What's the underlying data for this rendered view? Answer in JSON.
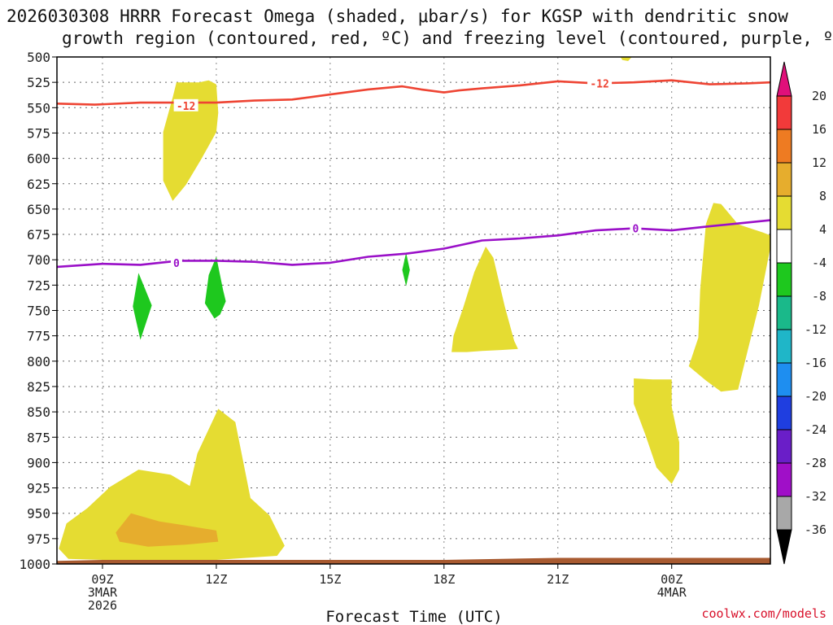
{
  "chart_data": {
    "type": "cross-section",
    "title_line1": "2026030308 HRRR Forecast Omega (shaded, μbar/s) for KGSP with dendritic snow",
    "title_line2": "growth region (contoured, red, ºC) and freezing level (contoured, purple, ºC)",
    "xlabel": "Forecast Time (UTC)",
    "credit": "coolwx.com/models",
    "x_range_hours": [
      7.8,
      26.6
    ],
    "y_range_hpa": [
      500,
      1000
    ],
    "y_ticks": [
      "500",
      "525",
      "550",
      "575",
      "600",
      "625",
      "650",
      "675",
      "700",
      "725",
      "750",
      "775",
      "800",
      "825",
      "850",
      "875",
      "900",
      "925",
      "950",
      "975",
      "1000"
    ],
    "x_ticks": [
      {
        "hour": 9,
        "lines": [
          "09Z",
          "3MAR",
          "2026"
        ]
      },
      {
        "hour": 12,
        "lines": [
          "12Z"
        ]
      },
      {
        "hour": 15,
        "lines": [
          "15Z"
        ]
      },
      {
        "hour": 18,
        "lines": [
          "18Z"
        ]
      },
      {
        "hour": 21,
        "lines": [
          "21Z"
        ]
      },
      {
        "hour": 24,
        "lines": [
          "00Z",
          "4MAR"
        ]
      }
    ],
    "colorbar": {
      "ticks": [
        "20",
        "16",
        "12",
        "8",
        "4",
        "-4",
        "-8",
        "-12",
        "-16",
        "-20",
        "-24",
        "-28",
        "-32",
        "-36"
      ],
      "bins": [
        {
          "label": "16 to 20",
          "color": "#f23a3a"
        },
        {
          "label": "12 to 16",
          "color": "#ee7b22"
        },
        {
          "label": "8 to 12",
          "color": "#e6ad2d"
        },
        {
          "label": "4 to 8",
          "color": "#e5dc32"
        },
        {
          "label": "-4 to 4",
          "color": "#ffffff"
        },
        {
          "label": "-8 to -4",
          "color": "#1ec81e"
        },
        {
          "label": "-12 to -8",
          "color": "#1ab98a"
        },
        {
          "label": "-16 to -12",
          "color": "#1fb6c8"
        },
        {
          "label": "-20 to -16",
          "color": "#1e8ef0"
        },
        {
          "label": "-24 to -20",
          "color": "#1f3ee0"
        },
        {
          "label": "-28 to -24",
          "color": "#6a1ec8"
        },
        {
          "label": "-32 to -28",
          "color": "#a00fc8"
        },
        {
          "label": "-36 to -32",
          "color": "#a8a8a8"
        }
      ],
      "top_arrow_color": "#e0107a",
      "bottom_arrow_color": "#000000"
    },
    "contours": [
      {
        "name": "dgz-minus12",
        "value": -12,
        "label": "-12",
        "color": "#ee4433",
        "points": [
          [
            7.8,
            546
          ],
          [
            8.8,
            547
          ],
          [
            10,
            545
          ],
          [
            12,
            545
          ],
          [
            13,
            543
          ],
          [
            14,
            542
          ],
          [
            15,
            537
          ],
          [
            16,
            532
          ],
          [
            16.9,
            529
          ],
          [
            17.4,
            532
          ],
          [
            18,
            535
          ],
          [
            18.4,
            533
          ],
          [
            19,
            531
          ],
          [
            20,
            528
          ],
          [
            21,
            524
          ],
          [
            22,
            526
          ],
          [
            23,
            525
          ],
          [
            24,
            523
          ],
          [
            25,
            527
          ],
          [
            26,
            526
          ],
          [
            26.6,
            525
          ]
        ],
        "label_positions": [
          [
            11.2,
            548
          ],
          [
            22.1,
            526
          ]
        ]
      },
      {
        "name": "freezing-level-0",
        "value": 0,
        "label": "0",
        "color": "#9a10c8",
        "points": [
          [
            7.8,
            707
          ],
          [
            9,
            704
          ],
          [
            10,
            705
          ],
          [
            11,
            701
          ],
          [
            12,
            701
          ],
          [
            13,
            702
          ],
          [
            14,
            705
          ],
          [
            15,
            703
          ],
          [
            16,
            697
          ],
          [
            17,
            694
          ],
          [
            18,
            689
          ],
          [
            19,
            681
          ],
          [
            20,
            679
          ],
          [
            21,
            676
          ],
          [
            22,
            671
          ],
          [
            23,
            669
          ],
          [
            24,
            671
          ],
          [
            25,
            667
          ],
          [
            26.6,
            661
          ]
        ],
        "label_positions": [
          [
            10.95,
            703
          ],
          [
            23.05,
            669
          ]
        ]
      }
    ],
    "shaded_regions": [
      {
        "name": "omega-pos-small-top",
        "value_bin": "4 to 8",
        "color": "#e5dc32",
        "points": [
          [
            22.65,
            500
          ],
          [
            22.95,
            500
          ],
          [
            22.85,
            504
          ],
          [
            22.7,
            503
          ]
        ]
      },
      {
        "name": "omega-pos-upper-12z",
        "value_bin": "4 to 8",
        "color": "#e5dc32",
        "points": [
          [
            10.95,
            525
          ],
          [
            11.55,
            525
          ],
          [
            11.8,
            523
          ],
          [
            12,
            527
          ],
          [
            12.05,
            555
          ],
          [
            12,
            574
          ],
          [
            11.6,
            601
          ],
          [
            11.2,
            626
          ],
          [
            10.85,
            642
          ],
          [
            10.6,
            622
          ],
          [
            10.6,
            574
          ],
          [
            10.85,
            540
          ]
        ]
      },
      {
        "name": "omega-pos-18z",
        "value_bin": "4 to 8",
        "color": "#e5dc32",
        "points": [
          [
            18.2,
            791
          ],
          [
            18.25,
            775
          ],
          [
            18.5,
            748
          ],
          [
            18.8,
            712
          ],
          [
            19.1,
            687
          ],
          [
            19.3,
            698
          ],
          [
            19.6,
            746
          ],
          [
            19.85,
            780
          ],
          [
            19.95,
            788
          ],
          [
            19.5,
            789
          ],
          [
            19,
            790
          ],
          [
            18.6,
            791
          ]
        ]
      },
      {
        "name": "omega-pos-right-upper",
        "value_bin": "4 to 8",
        "color": "#e5dc32",
        "points": [
          [
            24.75,
            730
          ],
          [
            24.9,
            665
          ],
          [
            25.1,
            644
          ],
          [
            25.3,
            645
          ],
          [
            25.75,
            665
          ],
          [
            26.4,
            673
          ],
          [
            26.6,
            676
          ],
          [
            26.6,
            688
          ],
          [
            26.3,
            745
          ],
          [
            26,
            790
          ],
          [
            25.75,
            828
          ],
          [
            25.3,
            830
          ],
          [
            24.9,
            819
          ],
          [
            24.45,
            805
          ],
          [
            24.7,
            777
          ]
        ]
      },
      {
        "name": "omega-pos-right-lower",
        "value_bin": "4 to 8",
        "color": "#e5dc32",
        "points": [
          [
            23.0,
            817
          ],
          [
            23.5,
            818
          ],
          [
            24,
            818
          ],
          [
            24,
            845
          ],
          [
            24.2,
            880
          ],
          [
            24.2,
            907
          ],
          [
            24,
            921
          ],
          [
            23.6,
            905
          ],
          [
            23.3,
            872
          ],
          [
            23.0,
            842
          ]
        ]
      },
      {
        "name": "omega-pos-lower-main",
        "value_bin": "4 to 8",
        "color": "#e5dc32",
        "points": [
          [
            7.85,
            985
          ],
          [
            8.05,
            960
          ],
          [
            8.6,
            945
          ],
          [
            9.2,
            924
          ],
          [
            9.95,
            907
          ],
          [
            10.8,
            912
          ],
          [
            11.3,
            923
          ],
          [
            11.5,
            891
          ],
          [
            12.05,
            847
          ],
          [
            12.5,
            860
          ],
          [
            12.9,
            935
          ],
          [
            13.4,
            952
          ],
          [
            13.8,
            982
          ],
          [
            13.6,
            992
          ],
          [
            12,
            996
          ],
          [
            10,
            997
          ],
          [
            8.1,
            995
          ]
        ]
      },
      {
        "name": "omega-pos-lower-core",
        "value_bin": "8 to 12",
        "color": "#e6ad2d",
        "points": [
          [
            9.35,
            969
          ],
          [
            9.75,
            950
          ],
          [
            10.5,
            958
          ],
          [
            11.2,
            962
          ],
          [
            12.0,
            967
          ],
          [
            12.05,
            978
          ],
          [
            11.2,
            981
          ],
          [
            10.2,
            983
          ],
          [
            9.45,
            978
          ]
        ]
      },
      {
        "name": "omega-neg-09z",
        "value_bin": "-8 to -4",
        "color": "#1ec81e",
        "points": [
          [
            9.95,
            713
          ],
          [
            10.3,
            745
          ],
          [
            10,
            779
          ],
          [
            9.8,
            746
          ]
        ]
      },
      {
        "name": "omega-neg-12z",
        "value_bin": "-8 to -4",
        "color": "#1ec81e",
        "points": [
          [
            12,
            697
          ],
          [
            12.18,
            730
          ],
          [
            12.25,
            741
          ],
          [
            12.1,
            754
          ],
          [
            11.95,
            758
          ],
          [
            11.7,
            743
          ],
          [
            11.8,
            715
          ]
        ]
      },
      {
        "name": "omega-neg-17z",
        "value_bin": "-8 to -4",
        "color": "#1ec81e",
        "points": [
          [
            17.0,
            693
          ],
          [
            17.1,
            710
          ],
          [
            17,
            726
          ],
          [
            16.9,
            710
          ]
        ]
      }
    ],
    "terrain_surface": {
      "name": "terrain",
      "color": "#a85a30",
      "points": [
        [
          7.8,
          997
        ],
        [
          9,
          996
        ],
        [
          12,
          996
        ],
        [
          18,
          996
        ],
        [
          21,
          994
        ],
        [
          24,
          994
        ],
        [
          26.6,
          994
        ]
      ]
    }
  }
}
